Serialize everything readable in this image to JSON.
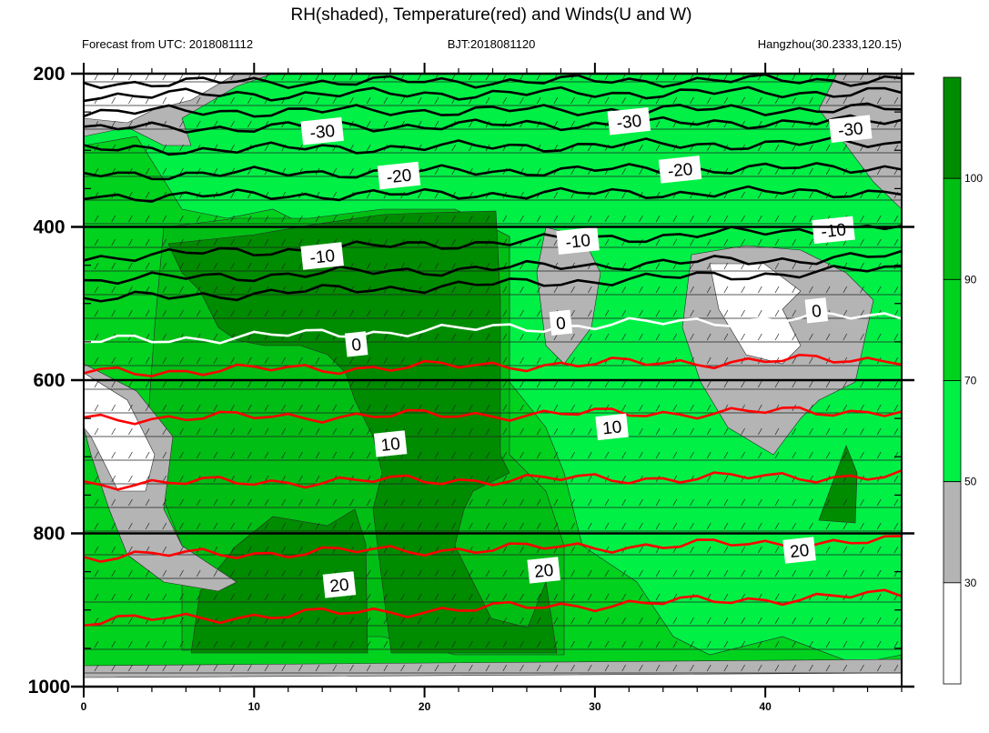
{
  "header": {
    "title": "RH(shaded), Temperature(red) and Winds(U and W)",
    "left_sub": "Forecast from UTC: 2018081112",
    "center_sub": "BJT:2018081120",
    "right_sub": "Hangzhou(30.2333,120.15)"
  },
  "colors": {
    "rh_lt30": "#ffffff",
    "rh_30_50": "#b4b4b4",
    "rh_50_70": "#00f046",
    "rh_70_90": "#00d21e",
    "rh_90_100": "#00be14",
    "rh_gt100": "#008c00",
    "temp_warm": "#ff0000",
    "temp_zero": "#ffffff",
    "temp_cold": "#000000"
  },
  "chart_data": {
    "type": "heatmap",
    "title": "RH(shaded), Temperature(red) and Winds(U and W)",
    "x_ticks": [
      "0",
      "10",
      "20",
      "30",
      "40"
    ],
    "y_ticks": [
      "200",
      "400",
      "600",
      "800",
      "1000"
    ],
    "xlim": [
      0,
      48
    ],
    "ylim": [
      200,
      1000
    ],
    "y_reversed": true,
    "colorbar": {
      "levels": [
        "30",
        "50",
        "70",
        "90",
        "100"
      ],
      "colors": [
        "#ffffff",
        "#b4b4b4",
        "#00f046",
        "#00d21e",
        "#00be14",
        "#008c00"
      ]
    },
    "contour_labels": [
      {
        "text": "-30",
        "x": 14,
        "y": 275
      },
      {
        "text": "-30",
        "x": 32,
        "y": 262
      },
      {
        "text": "-30",
        "x": 45,
        "y": 272
      },
      {
        "text": "-20",
        "x": 18.5,
        "y": 333
      },
      {
        "text": "-20",
        "x": 35,
        "y": 325
      },
      {
        "text": "-10",
        "x": 14,
        "y": 438
      },
      {
        "text": "-10",
        "x": 29,
        "y": 418
      },
      {
        "text": "-10",
        "x": 44,
        "y": 404
      },
      {
        "text": "0",
        "x": 16,
        "y": 553
      },
      {
        "text": "0",
        "x": 28,
        "y": 525
      },
      {
        "text": "0",
        "x": 43,
        "y": 509
      },
      {
        "text": "10",
        "x": 18,
        "y": 683
      },
      {
        "text": "10",
        "x": 31,
        "y": 661
      },
      {
        "text": "20",
        "x": 15,
        "y": 867
      },
      {
        "text": "20",
        "x": 27,
        "y": 848
      },
      {
        "text": "20",
        "x": 42,
        "y": 822
      }
    ],
    "temperature_levels": [
      -30,
      -20,
      -10,
      0,
      10,
      20
    ]
  }
}
